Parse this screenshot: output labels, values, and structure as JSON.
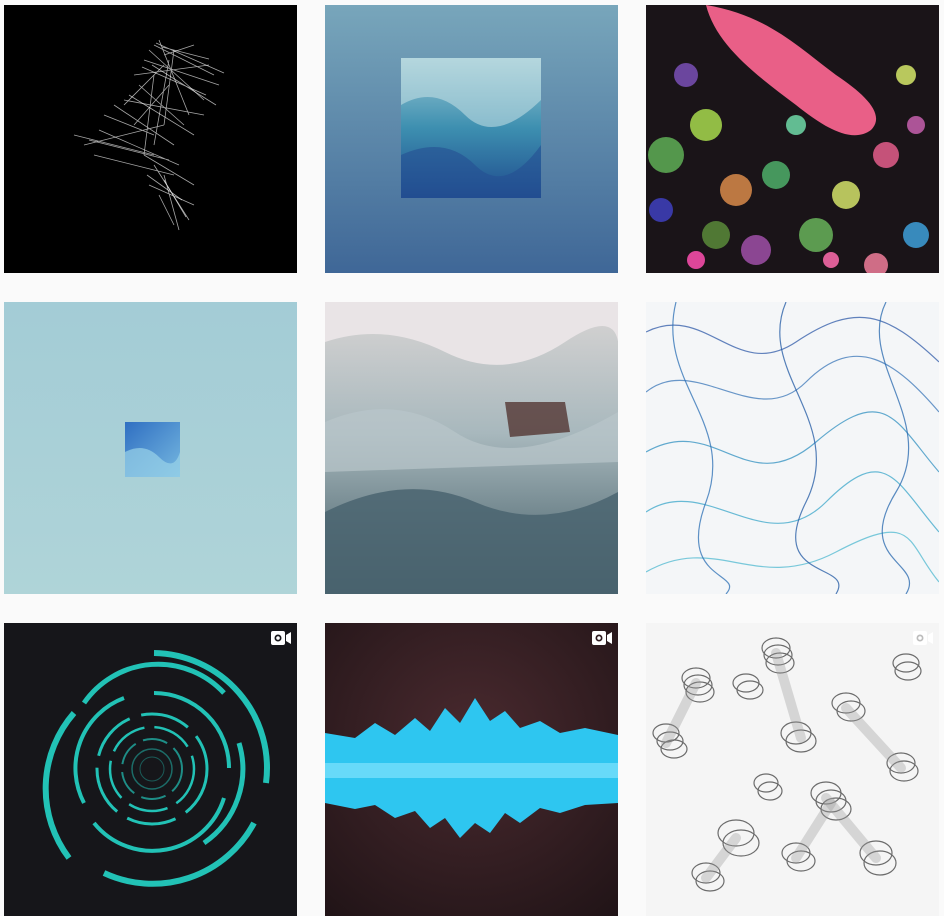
{
  "feed": {
    "posts": [
      {
        "art": "white-scribble-on-black",
        "is_video": false,
        "background": "#000000"
      },
      {
        "art": "blue-ink-square-on-gradient",
        "is_video": false,
        "background": "#5f8fb3"
      },
      {
        "art": "pink-bokeh-stream",
        "is_video": false,
        "background": "#1a1418"
      },
      {
        "art": "small-blue-square-on-pale-blue",
        "is_video": false,
        "background": "#a9d0d7"
      },
      {
        "art": "muted-smoke-landscape",
        "is_video": false,
        "background": "#8b9ea3"
      },
      {
        "art": "blue-ribbon-mesh",
        "is_video": false,
        "background": "#f4f6f8"
      },
      {
        "art": "teal-concentric-arcs",
        "is_video": true,
        "background": "#16161a"
      },
      {
        "art": "cyan-audio-waveform",
        "is_video": true,
        "background": "#2e1a1e"
      },
      {
        "art": "grey-spring-tubes",
        "is_video": true,
        "background": "#f5f5f5"
      }
    ],
    "video_icon": "video-camera-icon"
  }
}
